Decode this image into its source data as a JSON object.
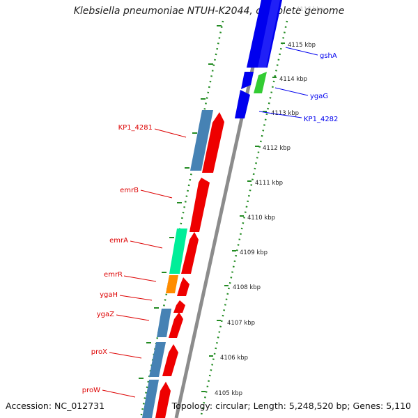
{
  "title": "Klebsiella pneumoniae NTUH-K2044, complete genome",
  "footer": {
    "accession": "Accession: NC_012731",
    "topology": "Topology: circular; Length: 5,248,520 bp; Genes: 5,110"
  },
  "colors": {
    "backbone": "#8c8c8c",
    "ticks": "#228b22",
    "forward_label": "#0000ee",
    "reverse_label": "#dd0000"
  },
  "scale_labels": [
    "4116 kbp",
    "4115 kbp",
    "4114 kbp",
    "4113 kbp",
    "4112 kbp",
    "4111 kbp",
    "4110 kbp",
    "4109 kbp",
    "4108 kbp",
    "4107 kbp",
    "4106 kbp",
    "4105 kbp"
  ],
  "gene_labels": {
    "forward": [
      "gshA",
      "ygaG",
      "KP1_4282"
    ],
    "reverse": [
      "KP1_4281",
      "emrB",
      "emrA",
      "emrR",
      "ygaH",
      "ygaZ",
      "proX",
      "proW"
    ]
  }
}
